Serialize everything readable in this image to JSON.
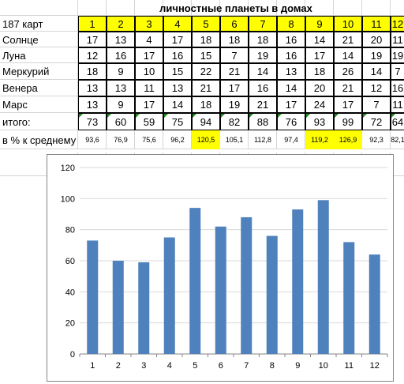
{
  "title": "личностные планеты в домах",
  "corner_label": "187 карт",
  "houses": [
    "1",
    "2",
    "3",
    "4",
    "5",
    "6",
    "7",
    "8",
    "9",
    "10",
    "11",
    "12"
  ],
  "rows": [
    {
      "label": "Солнце",
      "values": [
        "17",
        "13",
        "4",
        "17",
        "18",
        "18",
        "18",
        "16",
        "14",
        "21",
        "20",
        "11"
      ]
    },
    {
      "label": "Луна",
      "values": [
        "12",
        "16",
        "17",
        "16",
        "15",
        "7",
        "19",
        "16",
        "17",
        "14",
        "19",
        "19"
      ]
    },
    {
      "label": "Меркурий",
      "values": [
        "18",
        "9",
        "10",
        "15",
        "22",
        "21",
        "14",
        "13",
        "18",
        "26",
        "14",
        "7"
      ]
    },
    {
      "label": "Венера",
      "values": [
        "13",
        "13",
        "11",
        "13",
        "21",
        "17",
        "16",
        "14",
        "20",
        "21",
        "12",
        "16"
      ]
    },
    {
      "label": "Марс",
      "values": [
        "13",
        "9",
        "17",
        "14",
        "18",
        "19",
        "21",
        "17",
        "24",
        "17",
        "7",
        "11"
      ]
    }
  ],
  "total": {
    "label": "итого:",
    "values": [
      "73",
      "60",
      "59",
      "75",
      "94",
      "82",
      "88",
      "76",
      "93",
      "99",
      "72",
      "64"
    ]
  },
  "percent": {
    "label": "в % к среднему",
    "values": [
      "93,6",
      "76,9",
      "75,6",
      "96,2",
      "120,5",
      "105,1",
      "112,8",
      "97,4",
      "119,2",
      "126,9",
      "92,3",
      "82,1"
    ],
    "highlighted_columns": [
      5,
      9,
      10
    ]
  },
  "colors": {
    "header_fill": "#ffff00",
    "bar": "#4f81bd",
    "error_triangle": "#1a8a1a"
  },
  "chart_data": {
    "type": "bar",
    "categories": [
      "1",
      "2",
      "3",
      "4",
      "5",
      "6",
      "7",
      "8",
      "9",
      "10",
      "11",
      "12"
    ],
    "values": [
      73,
      60,
      59,
      75,
      94,
      82,
      88,
      76,
      93,
      99,
      72,
      64
    ],
    "ylim": [
      0,
      120
    ],
    "yticks": [
      "0",
      "20",
      "40",
      "60",
      "80",
      "100",
      "120"
    ],
    "grid": true,
    "legend": "none",
    "title": "",
    "xlabel": "",
    "ylabel": ""
  }
}
